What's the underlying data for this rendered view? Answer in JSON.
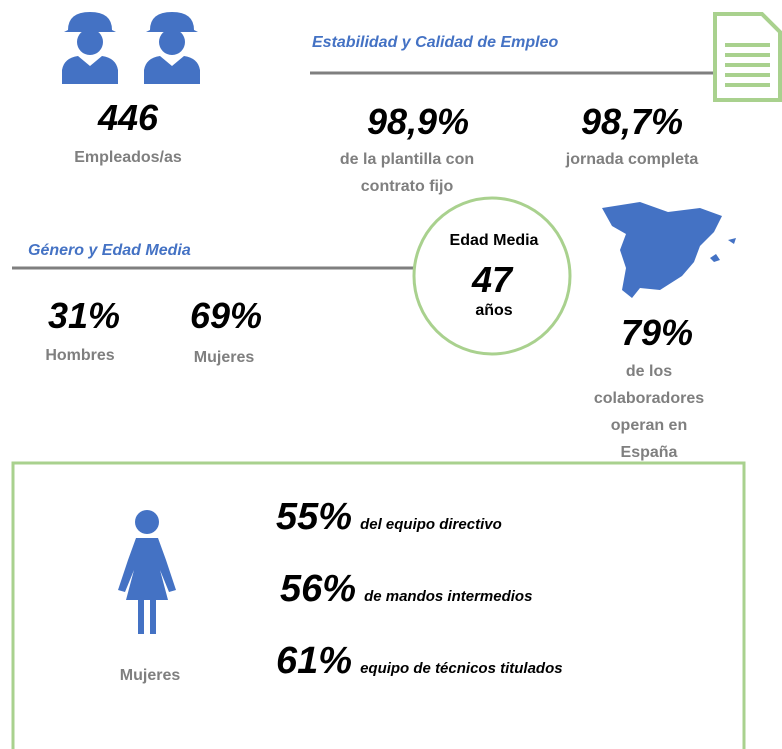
{
  "employees": {
    "value": "446",
    "label": "Empleados/as"
  },
  "stability": {
    "title": "Estabilidad y Calidad de Empleo",
    "items": [
      {
        "value": "98,9%",
        "label": "de la plantilla con\ncontrato fijo"
      },
      {
        "value": "98,7%",
        "label": "jornada completa"
      }
    ]
  },
  "gender": {
    "title": "Género y Edad Media",
    "items": [
      {
        "value": "31%",
        "label": "Hombres"
      },
      {
        "value": "69%",
        "label": "Mujeres"
      }
    ]
  },
  "age": {
    "title": "Edad Media",
    "value": "47",
    "unit": "años"
  },
  "spain": {
    "value": "79%",
    "label": "de los colaboradores\noperan en España"
  },
  "women": {
    "label": "Mujeres",
    "items": [
      {
        "value": "55%",
        "label": "del equipo directivo"
      },
      {
        "value": "56%",
        "label": "de mandos intermedios"
      },
      {
        "value": "61%",
        "label": "equipo de técnicos titulados"
      }
    ]
  }
}
